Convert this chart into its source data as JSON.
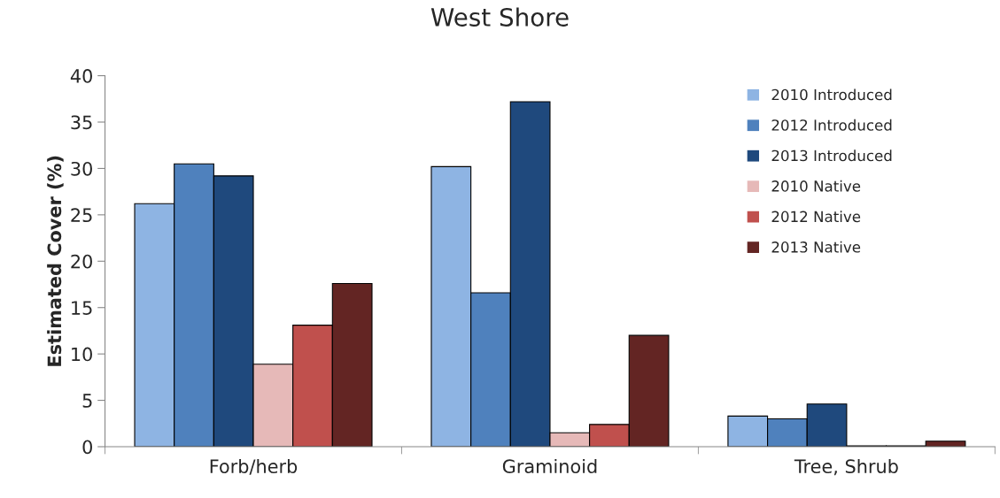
{
  "chart_data": {
    "type": "bar",
    "title": "West Shore",
    "ylabel": "Estimated Cover (%)",
    "categories": [
      "Forb/herb",
      "Graminoid",
      "Tree, Shrub"
    ],
    "series": [
      {
        "name": "2010 Introduced",
        "color": "#8eb4e3",
        "values": [
          26.2,
          30.2,
          3.3
        ]
      },
      {
        "name": "2012 Introduced",
        "color": "#4f81bd",
        "values": [
          30.5,
          16.6,
          3.0
        ]
      },
      {
        "name": "2013 Introduced",
        "color": "#1f497d",
        "values": [
          29.2,
          37.2,
          4.6
        ]
      },
      {
        "name": "2010 Native",
        "color": "#e6b9b8",
        "values": [
          8.9,
          1.5,
          0.1
        ]
      },
      {
        "name": "2012 Native",
        "color": "#c0504d",
        "values": [
          13.1,
          2.4,
          0.1
        ]
      },
      {
        "name": "2013 Native",
        "color": "#632523",
        "values": [
          17.6,
          12.0,
          0.6
        ]
      }
    ],
    "ylim": [
      0,
      40
    ],
    "yticks": [
      0,
      5,
      10,
      15,
      20,
      25,
      30,
      35,
      40
    ],
    "grid": false,
    "legend": "right"
  }
}
